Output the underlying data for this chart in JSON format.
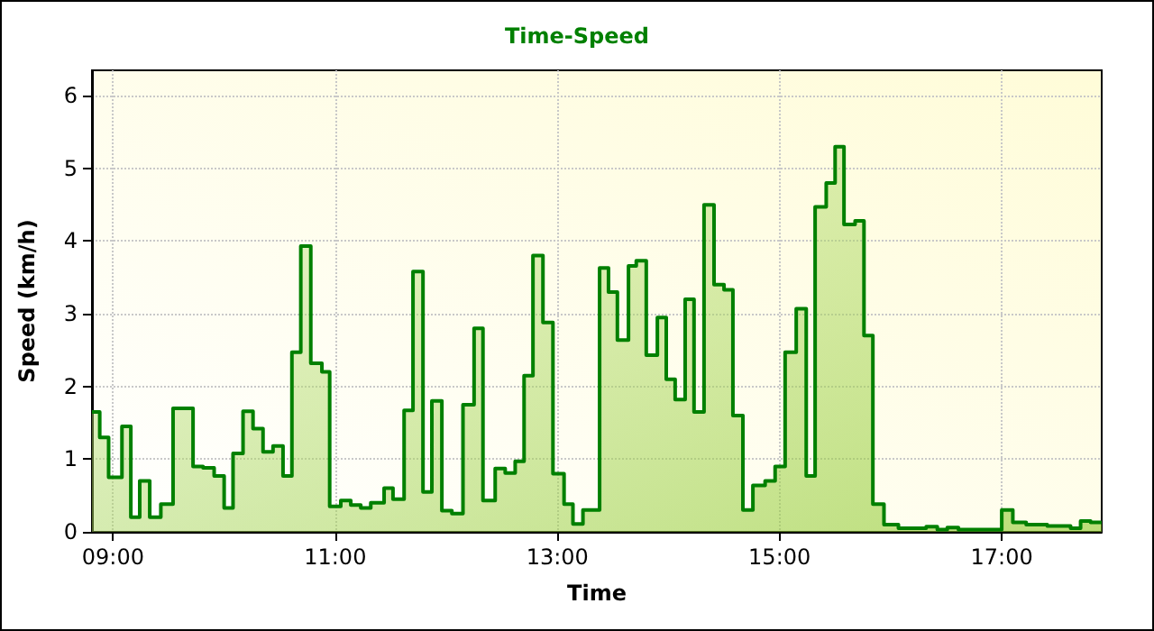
{
  "chart_data": {
    "type": "area",
    "title": "Time-Speed",
    "xlabel": "Time",
    "ylabel": "Speed (km/h)",
    "x": [
      8.81,
      8.88,
      8.88,
      8.96,
      8.96,
      9.08,
      9.08,
      9.16,
      9.16,
      9.24,
      9.24,
      9.33,
      9.33,
      9.43,
      9.43,
      9.54,
      9.54,
      9.63,
      9.63,
      9.72,
      9.72,
      9.81,
      9.81,
      9.91,
      9.91,
      10.0,
      10.0,
      10.08,
      10.08,
      10.17,
      10.17,
      10.26,
      10.26,
      10.35,
      10.35,
      10.44,
      10.44,
      10.53,
      10.53,
      10.61,
      10.61,
      10.69,
      10.69,
      10.78,
      10.78,
      10.88,
      10.88,
      10.95,
      10.95,
      11.05,
      11.05,
      11.14,
      11.14,
      11.23,
      11.23,
      11.32,
      11.32,
      11.44,
      11.44,
      11.52,
      11.52,
      11.62,
      11.62,
      11.7,
      11.7,
      11.79,
      11.79,
      11.87,
      11.87,
      11.96,
      11.96,
      12.05,
      12.05,
      12.15,
      12.15,
      12.25,
      12.25,
      12.33,
      12.33,
      12.44,
      12.44,
      12.53,
      12.53,
      12.62,
      12.62,
      12.7,
      12.7,
      12.78,
      12.78,
      12.87,
      12.87,
      12.96,
      12.96,
      13.06,
      13.06,
      13.14,
      13.14,
      13.23,
      13.23,
      13.38,
      13.38,
      13.46,
      13.46,
      13.54,
      13.54,
      13.64,
      13.64,
      13.71,
      13.71,
      13.8,
      13.8,
      13.9,
      13.9,
      13.98,
      13.98,
      14.06,
      14.06,
      14.15,
      14.15,
      14.23,
      14.23,
      14.32,
      14.32,
      14.41,
      14.41,
      14.5,
      14.5,
      14.58,
      14.58,
      14.67,
      14.67,
      14.76,
      14.76,
      14.87,
      14.87,
      14.96,
      14.96,
      15.05,
      15.05,
      15.15,
      15.15,
      15.24,
      15.24,
      15.32,
      15.32,
      15.42,
      15.42,
      15.5,
      15.5,
      15.58,
      15.58,
      15.68,
      15.68,
      15.76,
      15.76,
      15.84,
      15.84,
      15.94,
      15.94,
      16.07,
      16.07,
      16.32,
      16.32,
      16.42,
      16.42,
      16.51,
      16.51,
      16.61,
      16.61,
      17.0,
      17.0,
      17.1,
      17.1,
      17.22,
      17.22,
      17.41,
      17.41,
      17.62,
      17.62,
      17.71,
      17.71,
      17.8,
      17.8,
      17.9
    ],
    "series": [
      {
        "color": "#008000",
        "values": [
          1.65,
          1.65,
          1.3,
          1.3,
          0.75,
          0.75,
          1.45,
          1.45,
          0.2,
          0.2,
          0.7,
          0.7,
          0.2,
          0.2,
          0.38,
          0.38,
          1.7,
          1.7,
          1.7,
          1.7,
          0.9,
          0.9,
          0.88,
          0.88,
          0.77,
          0.77,
          0.33,
          0.33,
          1.08,
          1.08,
          1.66,
          1.66,
          1.42,
          1.42,
          1.1,
          1.1,
          1.18,
          1.18,
          0.77,
          0.77,
          2.47,
          2.47,
          3.93,
          3.93,
          2.32,
          2.32,
          2.2,
          2.2,
          0.35,
          0.35,
          0.43,
          0.43,
          0.37,
          0.37,
          0.33,
          0.33,
          0.4,
          0.4,
          0.6,
          0.6,
          0.45,
          0.45,
          1.67,
          1.67,
          3.58,
          3.58,
          0.55,
          0.55,
          1.8,
          1.8,
          0.29,
          0.29,
          0.25,
          0.25,
          1.75,
          1.75,
          2.8,
          2.8,
          0.43,
          0.43,
          0.87,
          0.87,
          0.81,
          0.81,
          0.97,
          0.97,
          2.15,
          2.15,
          3.8,
          3.8,
          2.88,
          2.88,
          0.8,
          0.8,
          0.38,
          0.38,
          0.11,
          0.11,
          0.3,
          0.3,
          3.63,
          3.63,
          3.3,
          3.3,
          2.64,
          2.64,
          3.66,
          3.66,
          3.73,
          3.73,
          2.43,
          2.43,
          2.95,
          2.95,
          2.1,
          2.1,
          1.82,
          1.82,
          3.2,
          3.2,
          1.65,
          1.65,
          4.5,
          4.5,
          3.4,
          3.4,
          3.33,
          3.33,
          1.6,
          1.6,
          0.3,
          0.3,
          0.64,
          0.64,
          0.7,
          0.7,
          0.9,
          0.9,
          2.47,
          2.47,
          3.07,
          3.07,
          0.77,
          0.77,
          4.47,
          4.47,
          4.8,
          4.8,
          5.3,
          5.3,
          4.23,
          4.23,
          4.28,
          4.28,
          2.7,
          2.7,
          0.38,
          0.38,
          0.1,
          0.1,
          0.05,
          0.05,
          0.07,
          0.07,
          0.03,
          0.03,
          0.06,
          0.06,
          0.03,
          0.03,
          0.3,
          0.3,
          0.13,
          0.13,
          0.1,
          0.1,
          0.08,
          0.08,
          0.05,
          0.05,
          0.15,
          0.15,
          0.13,
          0.13
        ]
      }
    ],
    "xlim": [
      8.81,
      17.9
    ],
    "xticks": [
      {
        "value": 9,
        "label": "09:00"
      },
      {
        "value": 11,
        "label": "11:00"
      },
      {
        "value": 13,
        "label": "13:00"
      },
      {
        "value": 15,
        "label": "15:00"
      },
      {
        "value": 17,
        "label": "17:00"
      }
    ],
    "ylim": [
      0,
      6.35
    ],
    "yticks": [
      0,
      1,
      2,
      3,
      4,
      5,
      6
    ],
    "grid": true,
    "marker": "none",
    "line_style": "solid"
  }
}
